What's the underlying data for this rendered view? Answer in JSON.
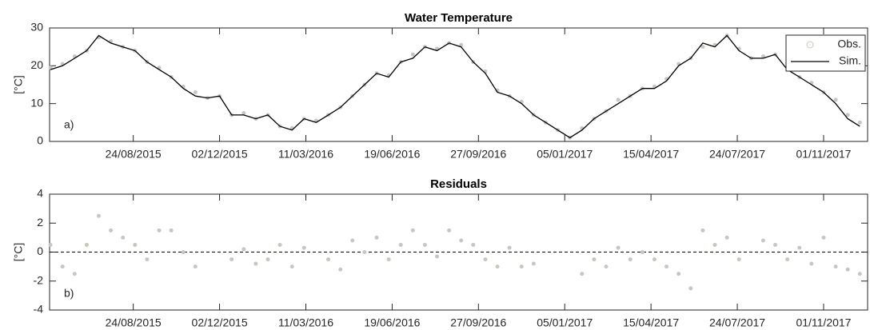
{
  "chart_data": [
    {
      "type": "line",
      "title": "Water Temperature",
      "y_label": "[°C]",
      "panel_label": "a)",
      "legend": "upper right",
      "x": [
        "2015-05-20",
        "2015-06-03",
        "2015-06-17",
        "2015-07-01",
        "2015-07-15",
        "2015-07-29",
        "2015-08-12",
        "2015-08-26",
        "2015-09-09",
        "2015-09-23",
        "2015-10-07",
        "2015-10-21",
        "2015-11-04",
        "2015-11-18",
        "2015-12-02",
        "2015-12-16",
        "2015-12-30",
        "2016-01-13",
        "2016-01-27",
        "2016-02-10",
        "2016-02-24",
        "2016-03-09",
        "2016-03-23",
        "2016-04-06",
        "2016-04-20",
        "2016-05-04",
        "2016-05-18",
        "2016-06-01",
        "2016-06-15",
        "2016-06-29",
        "2016-07-13",
        "2016-07-27",
        "2016-08-10",
        "2016-08-24",
        "2016-09-07",
        "2016-09-21",
        "2016-10-05",
        "2016-10-19",
        "2016-11-02",
        "2016-11-16",
        "2016-11-30",
        "2016-12-14",
        "2016-12-28",
        "2017-01-11",
        "2017-01-25",
        "2017-02-08",
        "2017-02-22",
        "2017-03-08",
        "2017-03-22",
        "2017-04-05",
        "2017-04-19",
        "2017-05-03",
        "2017-05-17",
        "2017-05-31",
        "2017-06-14",
        "2017-06-28",
        "2017-07-12",
        "2017-07-26",
        "2017-08-09",
        "2017-08-23",
        "2017-09-06",
        "2017-09-20",
        "2017-10-04",
        "2017-10-18",
        "2017-11-01",
        "2017-11-15",
        "2017-11-29",
        "2017-12-13"
      ],
      "series": [
        {
          "name": "Obs.",
          "mode": "markers",
          "color": "#c9c7bd",
          "values": [
            19.5,
            20.5,
            22.5,
            24,
            27.5,
            26.5,
            25,
            24,
            21,
            19.5,
            17,
            14.5,
            13,
            11.5,
            12,
            7,
            7.5,
            6,
            7,
            4,
            3.5,
            6,
            5.5,
            7,
            9,
            12,
            15,
            18,
            17.5,
            21,
            23,
            25,
            24.5,
            26,
            25.5,
            21,
            18.5,
            13.5,
            12,
            10.5,
            7,
            5,
            3,
            1,
            3.5,
            6,
            8,
            11,
            12,
            14,
            14.5,
            16.5,
            20.5,
            22,
            25,
            25.5,
            28,
            24.5,
            22,
            22.5,
            23,
            19.5,
            17,
            15.5,
            13,
            11,
            7,
            5
          ]
        },
        {
          "name": "Sim.",
          "mode": "line",
          "color": "#000000",
          "values": [
            19,
            20,
            22,
            24,
            28,
            26,
            25,
            24,
            21,
            19,
            17,
            14,
            12,
            11.5,
            12,
            7,
            7,
            6,
            7,
            4,
            3,
            6,
            5,
            7,
            9,
            12,
            15,
            18,
            17,
            21,
            22,
            25,
            24,
            26,
            25,
            21,
            18,
            13,
            12,
            10,
            7,
            5,
            3,
            1,
            3,
            6,
            8,
            10,
            12,
            14,
            14,
            16,
            20,
            22,
            26,
            25,
            28,
            24,
            22,
            22,
            23,
            19,
            17,
            15,
            13,
            10,
            6,
            4
          ]
        }
      ],
      "xlim": [
        "2015-05-19",
        "2017-12-22"
      ],
      "xticks": [
        {
          "value": "2015-08-24",
          "label": "24/08/2015"
        },
        {
          "value": "2015-12-02",
          "label": "02/12/2015"
        },
        {
          "value": "2016-03-11",
          "label": "11/03/2016"
        },
        {
          "value": "2016-06-19",
          "label": "19/06/2016"
        },
        {
          "value": "2016-09-27",
          "label": "27/09/2016"
        },
        {
          "value": "2017-01-05",
          "label": "05/01/2017"
        },
        {
          "value": "2017-04-15",
          "label": "15/04/2017"
        },
        {
          "value": "2017-07-24",
          "label": "24/07/2017"
        },
        {
          "value": "2017-11-01",
          "label": "01/11/2017"
        }
      ],
      "ylim": [
        0,
        30
      ],
      "yticks": [
        0,
        10,
        20,
        30
      ]
    },
    {
      "type": "scatter",
      "title": "Residuals",
      "y_label": "[°C]",
      "panel_label": "b)",
      "color": "#c9c7bd",
      "ref_line": 0,
      "x": [
        "2015-05-20",
        "2015-06-03",
        "2015-06-17",
        "2015-07-01",
        "2015-07-15",
        "2015-07-29",
        "2015-08-12",
        "2015-08-26",
        "2015-09-09",
        "2015-09-23",
        "2015-10-07",
        "2015-10-21",
        "2015-11-04",
        "2015-11-18",
        "2015-12-02",
        "2015-12-16",
        "2015-12-30",
        "2016-01-13",
        "2016-01-27",
        "2016-02-10",
        "2016-02-24",
        "2016-03-09",
        "2016-03-23",
        "2016-04-06",
        "2016-04-20",
        "2016-05-04",
        "2016-05-18",
        "2016-06-01",
        "2016-06-15",
        "2016-06-29",
        "2016-07-13",
        "2016-07-27",
        "2016-08-10",
        "2016-08-24",
        "2016-09-07",
        "2016-09-21",
        "2016-10-05",
        "2016-10-19",
        "2016-11-02",
        "2016-11-16",
        "2016-11-30",
        "2016-12-14",
        "2016-12-28",
        "2017-01-11",
        "2017-01-25",
        "2017-02-08",
        "2017-02-22",
        "2017-03-08",
        "2017-03-22",
        "2017-04-05",
        "2017-04-19",
        "2017-05-03",
        "2017-05-17",
        "2017-05-31",
        "2017-06-14",
        "2017-06-28",
        "2017-07-12",
        "2017-07-26",
        "2017-08-09",
        "2017-08-23",
        "2017-09-06",
        "2017-09-20",
        "2017-10-04",
        "2017-10-18",
        "2017-11-01",
        "2017-11-15",
        "2017-11-29",
        "2017-12-13"
      ],
      "values": [
        0.5,
        -1,
        -1.5,
        0.5,
        2.5,
        1.5,
        1,
        0.5,
        -0.5,
        1.5,
        1.5,
        0,
        -1,
        null,
        null,
        -0.5,
        0.2,
        -0.8,
        -0.5,
        0.5,
        -1,
        0.3,
        null,
        -0.5,
        -1.2,
        0.8,
        0,
        1,
        -0.5,
        0.5,
        1.5,
        0.5,
        -0.3,
        1.5,
        0.8,
        0.5,
        -0.5,
        -1,
        0.3,
        -1,
        -0.8,
        null,
        null,
        null,
        -1.5,
        -0.5,
        -1,
        0.3,
        -0.5,
        0,
        -0.5,
        -1,
        -1.5,
        -2.5,
        1.5,
        0.5,
        1,
        -0.5,
        null,
        0.8,
        0.5,
        -0.5,
        0.3,
        -0.8,
        1,
        -1,
        -1.2,
        -1.5
      ],
      "xlim": [
        "2015-05-19",
        "2017-12-22"
      ],
      "xticks": [
        {
          "value": "2015-08-24",
          "label": "24/08/2015"
        },
        {
          "value": "2015-12-02",
          "label": "02/12/2015"
        },
        {
          "value": "2016-03-11",
          "label": "11/03/2016"
        },
        {
          "value": "2016-06-19",
          "label": "19/06/2016"
        },
        {
          "value": "2016-09-27",
          "label": "27/09/2016"
        },
        {
          "value": "2017-01-05",
          "label": "05/01/2017"
        },
        {
          "value": "2017-04-15",
          "label": "15/04/2017"
        },
        {
          "value": "2017-07-24",
          "label": "24/07/2017"
        },
        {
          "value": "2017-11-01",
          "label": "01/11/2017"
        }
      ],
      "ylim": [
        -4,
        4
      ],
      "yticks": [
        -4,
        -2,
        0,
        2,
        4
      ]
    }
  ]
}
